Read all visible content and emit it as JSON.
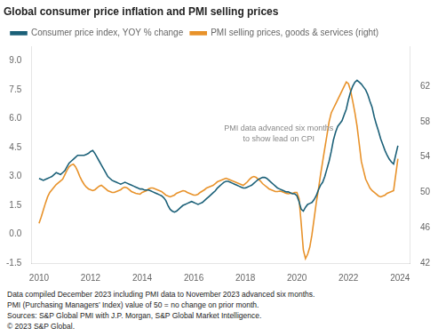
{
  "chart_data": {
    "type": "line",
    "title": "Global consumer price inflation and PMI selling prices",
    "annotation": "PMI data advanced six months\nto show lead on CPI",
    "footnotes": [
      "Data compiled December 2023 including PMI data to November 2023 advanced six months.",
      "PMI (Purchasing Managers’ Index) value of 50 = no change on prior month.",
      "Sources: S&P Global PMI with J.P. Morgan, S&P Global Market Intelligence.",
      "© 2023 S&P Global."
    ],
    "legend": "upper left",
    "grid": false,
    "xlim": [
      2009.7,
      2024.4
    ],
    "xticks": [
      2010,
      2012,
      2014,
      2016,
      2018,
      2020,
      2022,
      2024
    ],
    "ylim": [
      -1.5,
      9.75
    ],
    "yticks": [
      -1.5,
      {
        "value": 0,
        "label": "0.0"
      },
      1.5,
      {
        "value": 3,
        "label": "3.0"
      },
      4.5,
      {
        "value": 6,
        "label": "6.0"
      },
      7.5,
      {
        "value": 9,
        "label": "9.0"
      }
    ],
    "y2lim": [
      42,
      66.5
    ],
    "y2ticks": [
      42,
      46,
      50,
      54,
      58,
      62
    ],
    "x": [
      2010.0,
      2010.083,
      2010.167,
      2010.25,
      2010.333,
      2010.417,
      2010.5,
      2010.583,
      2010.667,
      2010.75,
      2010.833,
      2010.917,
      2011.0,
      2011.083,
      2011.167,
      2011.25,
      2011.333,
      2011.417,
      2011.5,
      2011.583,
      2011.667,
      2011.75,
      2011.833,
      2011.917,
      2012.0,
      2012.083,
      2012.167,
      2012.25,
      2012.333,
      2012.417,
      2012.5,
      2012.583,
      2012.667,
      2012.75,
      2012.833,
      2012.917,
      2013.0,
      2013.083,
      2013.167,
      2013.25,
      2013.333,
      2013.417,
      2013.5,
      2013.583,
      2013.667,
      2013.75,
      2013.833,
      2013.917,
      2014.0,
      2014.083,
      2014.167,
      2014.25,
      2014.333,
      2014.417,
      2014.5,
      2014.583,
      2014.667,
      2014.75,
      2014.833,
      2014.917,
      2015.0,
      2015.083,
      2015.167,
      2015.25,
      2015.333,
      2015.417,
      2015.5,
      2015.583,
      2015.667,
      2015.75,
      2015.833,
      2015.917,
      2016.0,
      2016.083,
      2016.167,
      2016.25,
      2016.333,
      2016.417,
      2016.5,
      2016.583,
      2016.667,
      2016.75,
      2016.833,
      2016.917,
      2017.0,
      2017.083,
      2017.167,
      2017.25,
      2017.333,
      2017.417,
      2017.5,
      2017.583,
      2017.667,
      2017.75,
      2017.833,
      2017.917,
      2018.0,
      2018.083,
      2018.167,
      2018.25,
      2018.333,
      2018.417,
      2018.5,
      2018.583,
      2018.667,
      2018.75,
      2018.833,
      2018.917,
      2019.0,
      2019.083,
      2019.167,
      2019.25,
      2019.333,
      2019.417,
      2019.5,
      2019.583,
      2019.667,
      2019.75,
      2019.833,
      2019.917,
      2020.0,
      2020.083,
      2020.167,
      2020.25,
      2020.333,
      2020.417,
      2020.5,
      2020.583,
      2020.667,
      2020.75,
      2020.833,
      2020.917,
      2021.0,
      2021.083,
      2021.167,
      2021.25,
      2021.333,
      2021.417,
      2021.5,
      2021.583,
      2021.667,
      2021.75,
      2021.833,
      2021.917,
      2022.0,
      2022.083,
      2022.167,
      2022.25,
      2022.333,
      2022.417,
      2022.5,
      2022.583,
      2022.667,
      2022.75,
      2022.833,
      2022.917,
      2023.0,
      2023.083,
      2023.167,
      2023.25,
      2023.333,
      2023.417,
      2023.5,
      2023.583,
      2023.667,
      2023.75,
      2023.917
    ],
    "series": [
      {
        "name": "Consumer price index, YOY % change",
        "color": "#1b6078",
        "axis": "y",
        "values": [
          2.9,
          2.85,
          2.8,
          2.85,
          2.9,
          2.95,
          3.0,
          3.1,
          3.2,
          3.15,
          3.1,
          3.2,
          3.3,
          3.5,
          3.7,
          3.8,
          3.9,
          4.0,
          4.1,
          4.1,
          4.1,
          4.1,
          4.15,
          4.2,
          4.3,
          4.35,
          4.2,
          4.0,
          3.8,
          3.6,
          3.4,
          3.2,
          3.0,
          2.9,
          2.8,
          2.75,
          2.7,
          2.65,
          2.6,
          2.65,
          2.7,
          2.65,
          2.6,
          2.55,
          2.5,
          2.45,
          2.4,
          2.35,
          2.35,
          2.3,
          2.3,
          2.3,
          2.25,
          2.2,
          2.15,
          2.1,
          2.05,
          2.0,
          1.9,
          1.75,
          1.5,
          1.3,
          1.2,
          1.15,
          1.2,
          1.3,
          1.4,
          1.5,
          1.55,
          1.6,
          1.65,
          1.7,
          1.65,
          1.6,
          1.55,
          1.6,
          1.65,
          1.75,
          1.85,
          1.95,
          2.05,
          2.15,
          2.25,
          2.4,
          2.5,
          2.6,
          2.7,
          2.75,
          2.75,
          2.7,
          2.65,
          2.6,
          2.55,
          2.5,
          2.45,
          2.4,
          2.4,
          2.45,
          2.5,
          2.55,
          2.65,
          2.75,
          2.85,
          2.9,
          2.95,
          2.95,
          2.9,
          2.8,
          2.7,
          2.6,
          2.5,
          2.4,
          2.35,
          2.3,
          2.25,
          2.2,
          2.2,
          2.15,
          2.1,
          2.1,
          2.0,
          1.7,
          1.3,
          1.2,
          1.4,
          1.55,
          1.6,
          1.65,
          1.8,
          2.0,
          2.3,
          2.55,
          2.7,
          3.0,
          3.4,
          3.8,
          4.3,
          4.9,
          5.3,
          5.6,
          5.75,
          5.9,
          6.2,
          6.5,
          7.0,
          7.4,
          7.7,
          7.9,
          8.0,
          7.9,
          7.8,
          7.65,
          7.5,
          7.25,
          6.9,
          6.6,
          6.1,
          5.7,
          5.35,
          4.95,
          4.65,
          4.35,
          4.1,
          3.9,
          3.75,
          3.65,
          4.6
        ]
      },
      {
        "name": "PMI selling prices, goods & services (right)",
        "color": "#e8922a",
        "axis": "y2",
        "values": [
          46.5,
          47.2,
          48.0,
          48.8,
          49.5,
          50.0,
          50.3,
          50.6,
          50.9,
          51.1,
          51.3,
          51.5,
          52.0,
          52.5,
          52.9,
          53.1,
          53.2,
          52.9,
          52.4,
          51.8,
          51.3,
          50.9,
          50.6,
          50.4,
          50.3,
          50.2,
          50.3,
          50.5,
          50.7,
          50.8,
          50.6,
          50.4,
          50.2,
          50.1,
          50.0,
          50.0,
          50.1,
          50.2,
          50.3,
          50.5,
          50.6,
          50.5,
          50.3,
          50.1,
          50.0,
          49.9,
          49.85,
          49.8,
          50.0,
          50.1,
          50.2,
          50.4,
          50.5,
          50.5,
          50.4,
          50.3,
          50.2,
          50.1,
          49.9,
          49.7,
          49.6,
          49.5,
          49.6,
          49.7,
          49.9,
          50.0,
          50.1,
          50.2,
          50.15,
          50.0,
          49.9,
          49.8,
          49.7,
          49.7,
          49.8,
          50.0,
          50.15,
          50.3,
          50.5,
          50.6,
          50.7,
          50.8,
          51.0,
          51.2,
          51.3,
          51.4,
          51.5,
          51.6,
          51.5,
          51.4,
          51.3,
          51.2,
          51.1,
          51.0,
          50.9,
          50.8,
          51.0,
          51.2,
          51.5,
          51.7,
          51.8,
          51.7,
          51.5,
          51.3,
          51.0,
          50.8,
          50.6,
          50.4,
          50.3,
          50.2,
          50.1,
          50.1,
          50.15,
          50.1,
          50.0,
          49.9,
          49.85,
          49.9,
          49.9,
          50.0,
          50.0,
          49.3,
          46.5,
          43.5,
          42.5,
          43.0,
          43.8,
          45.2,
          47.0,
          48.8,
          50.3,
          52.0,
          53.5,
          55.0,
          56.5,
          58.0,
          59.0,
          59.5,
          60.0,
          60.5,
          61.0,
          61.5,
          62.0,
          62.5,
          62.3,
          61.5,
          60.3,
          59.0,
          57.5,
          55.5,
          53.5,
          52.5,
          51.5,
          51.0,
          50.5,
          50.2,
          50.0,
          49.8,
          49.6,
          49.5,
          49.6,
          49.7,
          49.9,
          50.0,
          50.1,
          50.2,
          53.8
        ]
      }
    ]
  }
}
